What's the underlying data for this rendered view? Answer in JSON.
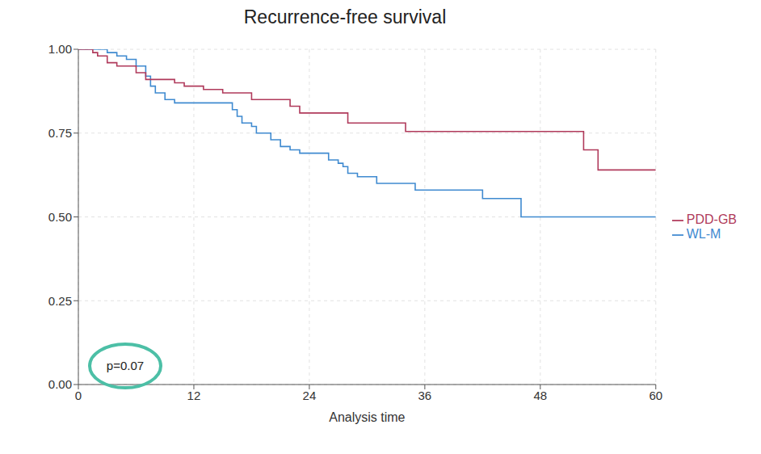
{
  "chart_data": {
    "type": "line",
    "title": "Recurrence-free survival",
    "x_label": "Analysis time",
    "xlim": [
      0,
      60
    ],
    "xticks": [
      0,
      12,
      24,
      36,
      48,
      60
    ],
    "ylim": [
      0,
      1
    ],
    "yticks": [
      {
        "value": 0,
        "label": "0.00"
      },
      {
        "value": 0.25,
        "label": "0.25"
      },
      {
        "value": 0.5,
        "label": "0.50"
      },
      {
        "value": 0.75,
        "label": "0.75"
      },
      {
        "value": 1,
        "label": "1.00"
      }
    ],
    "grid": true,
    "legend": "right",
    "line_style": "step",
    "annotations": [
      {
        "text": "p=0.07"
      }
    ],
    "series": [
      {
        "name": "WL-M",
        "color": "#3f8ad0",
        "x": [
          0,
          3,
          4,
          5,
          6,
          7,
          7.5,
          8,
          9,
          10,
          16,
          16.5,
          17,
          18,
          18.5,
          20,
          21,
          22,
          23,
          26,
          27,
          27.5,
          28,
          29,
          31,
          35,
          42,
          46,
          60
        ],
        "values": [
          1,
          0.99,
          0.98,
          0.97,
          0.95,
          0.92,
          0.89,
          0.87,
          0.85,
          0.84,
          0.82,
          0.8,
          0.78,
          0.77,
          0.75,
          0.73,
          0.71,
          0.7,
          0.69,
          0.67,
          0.66,
          0.65,
          0.63,
          0.62,
          0.6,
          0.58,
          0.555,
          0.5,
          0.5
        ]
      },
      {
        "name": "PDD-GB",
        "color": "#b03a5b",
        "x": [
          0,
          1.5,
          2,
          3,
          4,
          6,
          7,
          10,
          11,
          13,
          15,
          18,
          22,
          23,
          28,
          34,
          52.5,
          54,
          60
        ],
        "values": [
          1,
          0.99,
          0.98,
          0.96,
          0.95,
          0.93,
          0.91,
          0.9,
          0.89,
          0.88,
          0.87,
          0.85,
          0.83,
          0.81,
          0.78,
          0.755,
          0.7,
          0.64,
          0.64
        ]
      }
    ]
  }
}
